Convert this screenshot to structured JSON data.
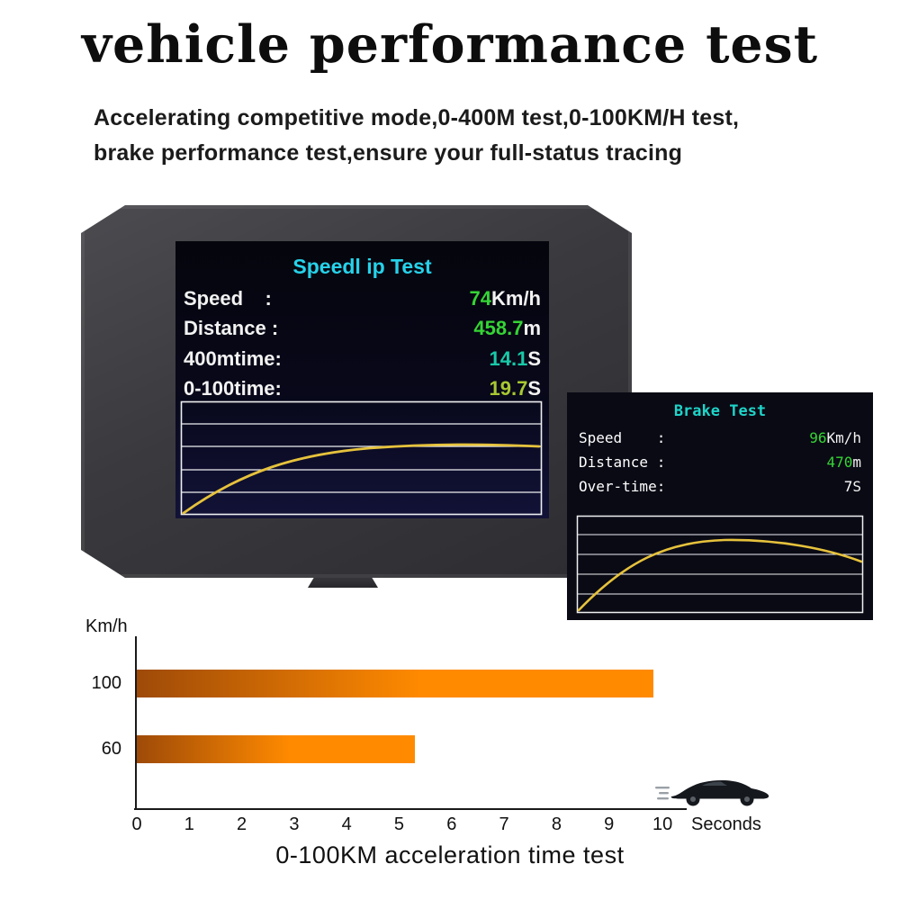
{
  "header": {
    "title": "vehicle performance test",
    "subtitle_line1": "Accelerating competitive mode,0-400M test,0-100KM/H test,",
    "subtitle_line2": "brake performance test,ensure your full-status tracing"
  },
  "speed_test_screen": {
    "title": "Speedl ip Test",
    "title_color": "#26d2ea",
    "rows": [
      {
        "label": "Speed    :",
        "value": "74",
        "unit": "Km/h",
        "value_color": "#35d435"
      },
      {
        "label": "Distance :",
        "value": "458.7",
        "unit": "m",
        "value_color": "#35d435"
      },
      {
        "label": "400mtime:",
        "value": "14.1",
        "unit": "S",
        "value_color": "#18c9a8"
      },
      {
        "label": "0-100time:",
        "value": "19.7",
        "unit": "S",
        "value_color": "#a8c832"
      }
    ]
  },
  "brake_test_panel": {
    "title": "Brake Test",
    "title_color": "#1ed4c8",
    "rows": [
      {
        "label": "Speed    :",
        "value": "96",
        "unit": "Km/h",
        "value_color": "#35d435"
      },
      {
        "label": "Distance :",
        "value": "470",
        "unit": "m",
        "value_color": "#35d435"
      },
      {
        "label": "Over-time:",
        "value": "7",
        "unit": "S",
        "value_color": "#ffffff"
      }
    ]
  },
  "chart_data": {
    "type": "bar",
    "orientation": "horizontal",
    "title": "0-100KM acceleration time test",
    "ylabel": "Km/h",
    "xlabel": "Seconds",
    "categories": [
      "100",
      "60"
    ],
    "values": [
      9.85,
      5.3
    ],
    "x_ticks": [
      "0",
      "1",
      "2",
      "3",
      "4",
      "5",
      "6",
      "7",
      "8",
      "9",
      "10"
    ],
    "xlim": [
      0,
      10
    ],
    "grid": false,
    "legend": "none",
    "bar_gradient": [
      "#9e4a08",
      "#ff8a00"
    ],
    "curve_color": "#e6c23c"
  }
}
